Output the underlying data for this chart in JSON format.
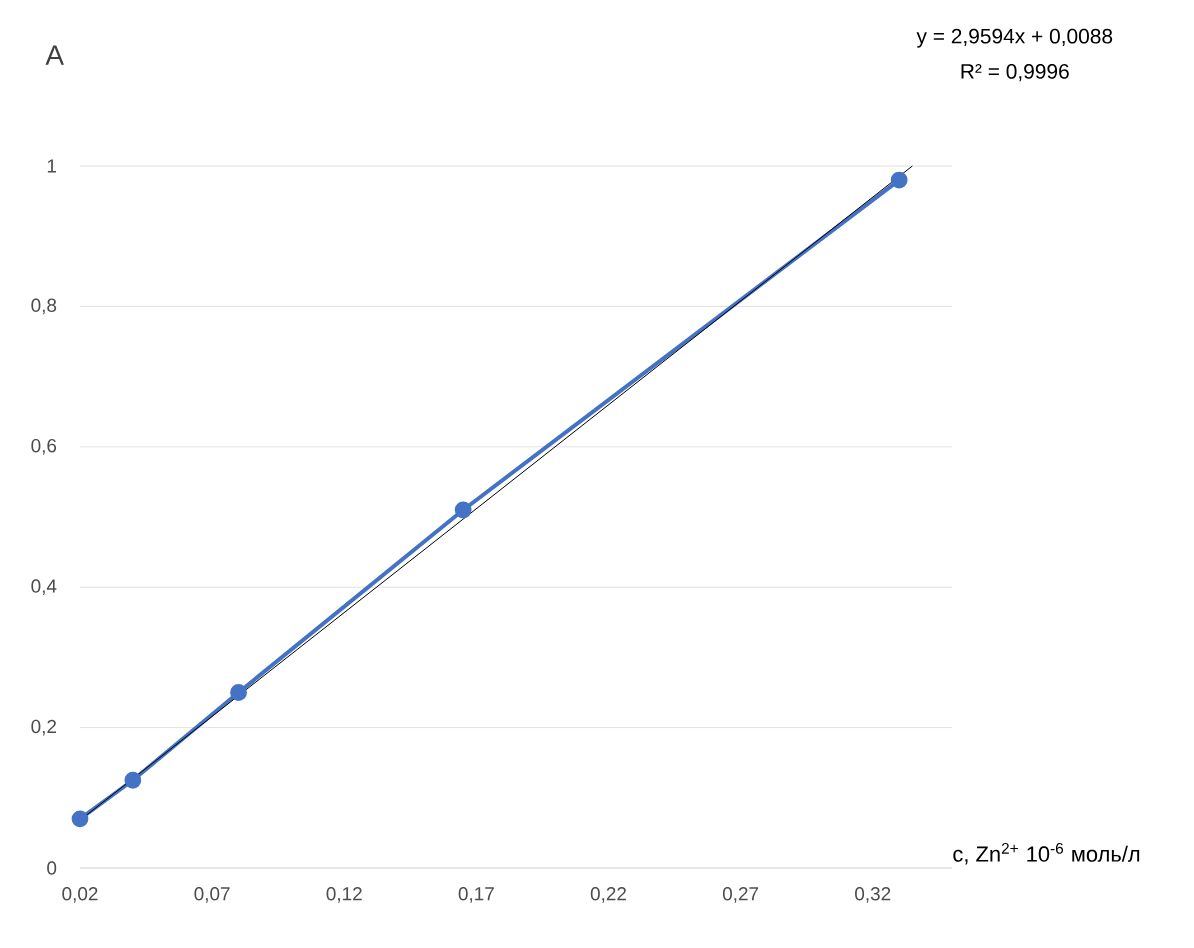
{
  "chart_data": {
    "type": "line",
    "xlabel": "c, Zn$^{2+}$ 10$^{-6}$ моль/л",
    "ylabel": "A",
    "annotations": [
      "y = 2,9594x + 0,0088",
      "R² = 0,9996"
    ],
    "series": [
      {
        "color": "#4472c4",
        "x": [
          0.02,
          0.04,
          0.08,
          0.165,
          0.33
        ],
        "values": [
          0.07,
          0.125,
          0.25,
          0.51,
          0.98
        ]
      },
      {
        "type": "line",
        "color": "#000000",
        "x": [
          0.02,
          0.335
        ],
        "values": [
          0.068,
          1.0
        ],
        "marker": "none"
      }
    ],
    "xlim": [
      0.02,
      0.35
    ],
    "ylim": [
      0,
      1
    ],
    "xticks": [
      {
        "value": 0.02,
        "label": "0,02"
      },
      {
        "value": 0.07,
        "label": "0,07"
      },
      {
        "value": 0.12,
        "label": "0,12"
      },
      {
        "value": 0.17,
        "label": "0,17"
      },
      {
        "value": 0.22,
        "label": "0,22"
      },
      {
        "value": 0.27,
        "label": "0,27"
      },
      {
        "value": 0.32,
        "label": "0,32"
      }
    ],
    "yticks": [
      0,
      {
        "value": 0.2,
        "label": "0,2"
      },
      {
        "value": 0.4,
        "label": "0,4"
      },
      {
        "value": 0.6,
        "label": "0,6"
      },
      {
        "value": 0.8,
        "label": "0,8"
      },
      1
    ],
    "grid": "y",
    "marker": "circle"
  }
}
